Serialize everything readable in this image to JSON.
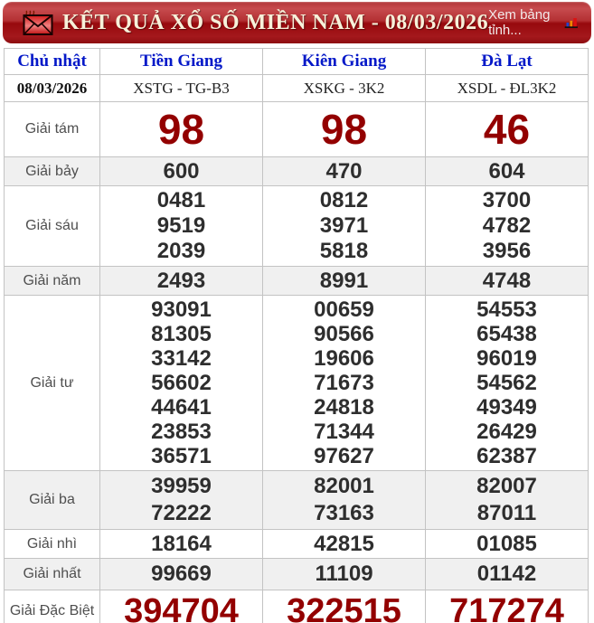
{
  "header": {
    "title": "KẾT QUẢ XỔ SỐ MIỀN NAM - 08/03/2026",
    "see_table_link": "Xem bảng tỉnh...",
    "icons": {
      "left": "envelope-icon",
      "right": "bar-chart-icon"
    },
    "colors": {
      "bar_top": "#c74b4e",
      "bar_bottom": "#8c0d10",
      "title_text": "#f7f1da"
    }
  },
  "table": {
    "day_label": "Chủ nhật",
    "date": "08/03/2026",
    "provinces": [
      {
        "name": "Tiền Giang",
        "code": "XSTG - TG-B3"
      },
      {
        "name": "Kiên Giang",
        "code": "XSKG - 3K2"
      },
      {
        "name": "Đà Lạt",
        "code": "XSDL - ĐL3K2"
      }
    ],
    "prizes": [
      {
        "label": "Giải tám",
        "style": "big-red",
        "row_class": "r-g8",
        "values": [
          [
            "98"
          ],
          [
            "98"
          ],
          [
            "46"
          ]
        ]
      },
      {
        "label": "Giải bảy",
        "style": "",
        "row_class": "r-g7",
        "values": [
          [
            "600"
          ],
          [
            "470"
          ],
          [
            "604"
          ]
        ]
      },
      {
        "label": "Giải sáu",
        "style": "",
        "row_class": "r-g6",
        "values": [
          [
            "0481",
            "9519",
            "2039"
          ],
          [
            "0812",
            "3971",
            "5818"
          ],
          [
            "3700",
            "4782",
            "3956"
          ]
        ]
      },
      {
        "label": "Giải năm",
        "style": "",
        "row_class": "r-g5",
        "values": [
          [
            "2493"
          ],
          [
            "8991"
          ],
          [
            "4748"
          ]
        ]
      },
      {
        "label": "Giải tư",
        "style": "",
        "row_class": "r-g4",
        "values": [
          [
            "93091",
            "81305",
            "33142",
            "56602",
            "44641",
            "23853",
            "36571"
          ],
          [
            "00659",
            "90566",
            "19606",
            "71673",
            "24818",
            "71344",
            "97627"
          ],
          [
            "54553",
            "65438",
            "96019",
            "54562",
            "49349",
            "26429",
            "62387"
          ]
        ]
      },
      {
        "label": "Giải ba",
        "style": "",
        "row_class": "r-g3",
        "values": [
          [
            "39959",
            "72222"
          ],
          [
            "82001",
            "73163"
          ],
          [
            "82007",
            "87011"
          ]
        ]
      },
      {
        "label": "Giải nhì",
        "style": "",
        "row_class": "r-g2",
        "values": [
          [
            "18164"
          ],
          [
            "42815"
          ],
          [
            "01085"
          ]
        ]
      },
      {
        "label": "Giải nhất",
        "style": "",
        "row_class": "r-g1",
        "values": [
          [
            "99669"
          ],
          [
            "11109"
          ],
          [
            "01142"
          ]
        ]
      },
      {
        "label": "Giải Đặc Biệt",
        "style": "special-red",
        "row_class": "r-db",
        "values": [
          [
            "394704"
          ],
          [
            "322515"
          ],
          [
            "717274"
          ]
        ]
      }
    ],
    "colors": {
      "header_link_blue": "#0418c8",
      "big_number_red": "#930000",
      "number_dark": "#2e2e2e",
      "alt_row_bg": "#f0f0f0"
    }
  }
}
